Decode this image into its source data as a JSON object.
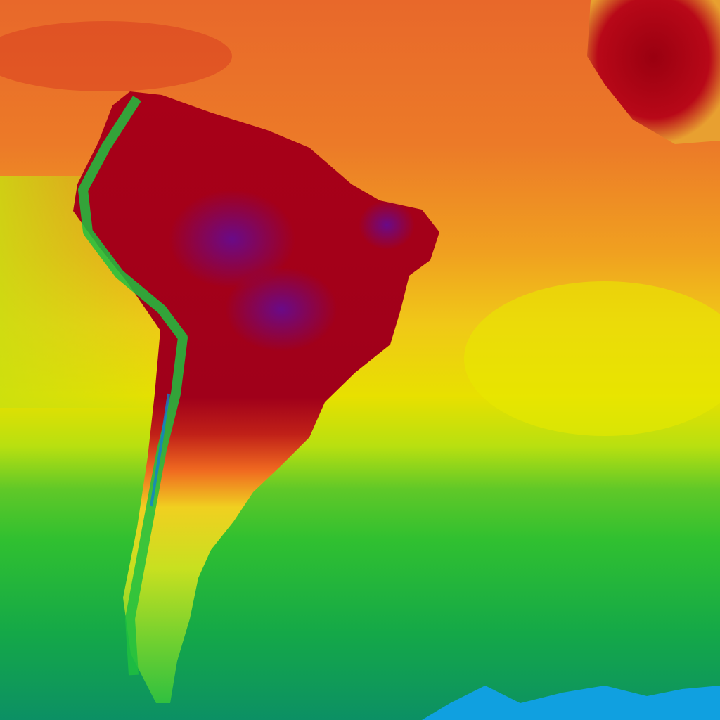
{
  "map": {
    "region": "South America",
    "colors": {
      "ocean_top": "#e8702a",
      "ocean_mid": "#f0b020",
      "ocean_yellow": "#e8e000",
      "ocean_green": "#2cc030",
      "ocean_teal": "#10905a",
      "ice": "#10a0e0",
      "land_hot": "#a0001a",
      "land_hottest": "#6a0a80",
      "land_cool": "#20c040"
    }
  }
}
